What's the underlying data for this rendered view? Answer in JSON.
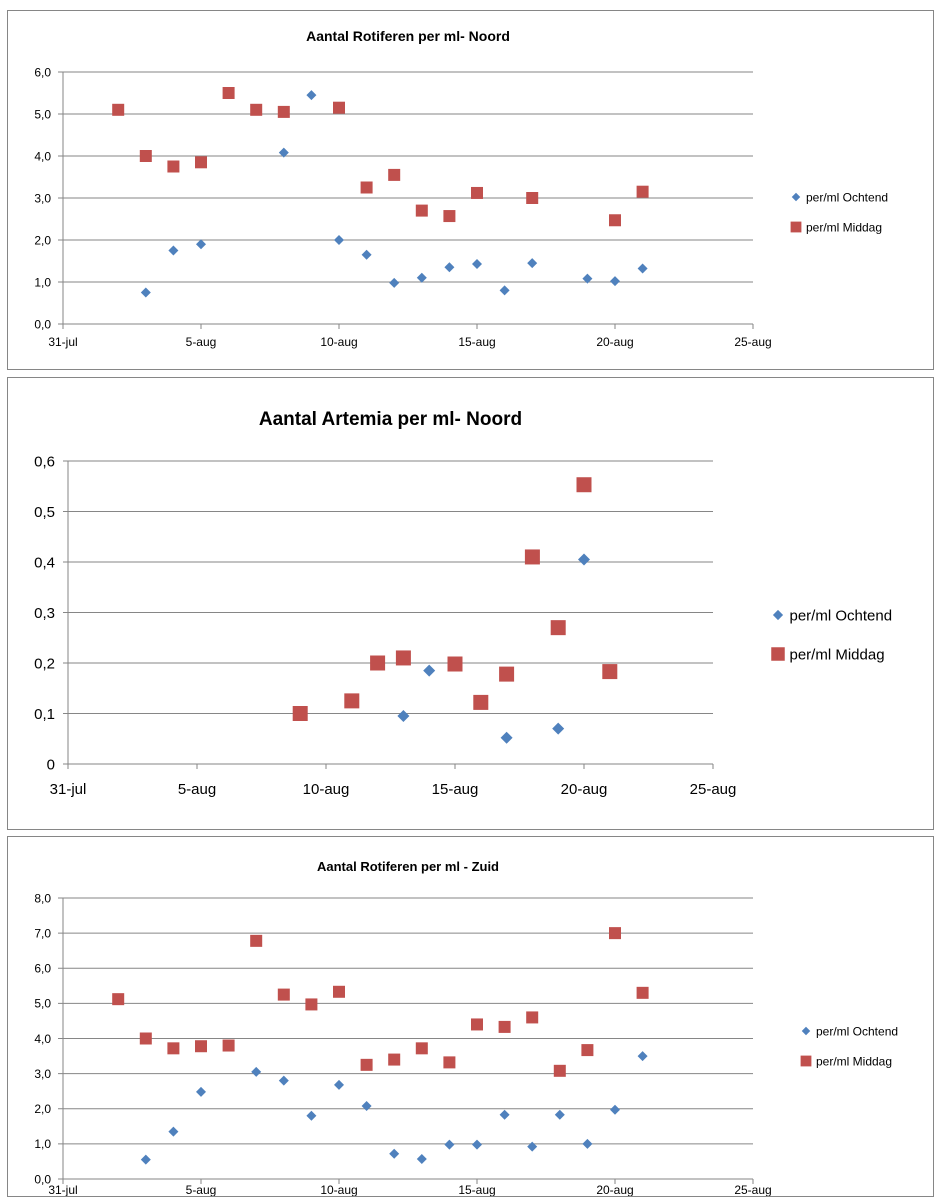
{
  "chart_data": [
    {
      "type": "scatter",
      "title": "Aantal Rotiferen per ml- Noord",
      "xlabel": "",
      "ylabel": "",
      "x_ticks": [
        "31-jul",
        "5-aug",
        "10-aug",
        "15-aug",
        "20-aug",
        "25-aug"
      ],
      "y_ticks": [
        "0,0",
        "1,0",
        "2,0",
        "3,0",
        "4,0",
        "5,0",
        "6,0"
      ],
      "ylim": [
        0,
        6
      ],
      "grid": true,
      "legend": "right",
      "series": [
        {
          "name": "per/ml Ochtend",
          "marker": "diamond",
          "color": "#4F81BD",
          "points": [
            [
              "3-aug",
              0.75
            ],
            [
              "4-aug",
              1.75
            ],
            [
              "5-aug",
              1.9
            ],
            [
              "8-aug",
              4.08
            ],
            [
              "9-aug",
              5.45
            ],
            [
              "10-aug",
              2.0
            ],
            [
              "11-aug",
              1.65
            ],
            [
              "12-aug",
              0.98
            ],
            [
              "13-aug",
              1.1
            ],
            [
              "14-aug",
              1.35
            ],
            [
              "15-aug",
              1.43
            ],
            [
              "16-aug",
              0.8
            ],
            [
              "17-aug",
              1.45
            ],
            [
              "19-aug",
              1.08
            ],
            [
              "20-aug",
              1.02
            ],
            [
              "21-aug",
              1.32
            ]
          ]
        },
        {
          "name": "per/ml Middag",
          "marker": "square",
          "color": "#C0504D",
          "points": [
            [
              "2-aug",
              5.1
            ],
            [
              "3-aug",
              4.0
            ],
            [
              "4-aug",
              3.75
            ],
            [
              "5-aug",
              3.85
            ],
            [
              "6-aug",
              5.5
            ],
            [
              "7-aug",
              5.1
            ],
            [
              "8-aug",
              5.05
            ],
            [
              "10-aug",
              5.15
            ],
            [
              "11-aug",
              3.25
            ],
            [
              "12-aug",
              3.55
            ],
            [
              "13-aug",
              2.7
            ],
            [
              "14-aug",
              2.57
            ],
            [
              "15-aug",
              3.12
            ],
            [
              "17-aug",
              3.0
            ],
            [
              "20-aug",
              2.47
            ],
            [
              "21-aug",
              3.15
            ]
          ]
        }
      ]
    },
    {
      "type": "scatter",
      "title": "Aantal Artemia per ml- Noord",
      "xlabel": "",
      "ylabel": "",
      "x_ticks": [
        "31-jul",
        "5-aug",
        "10-aug",
        "15-aug",
        "20-aug",
        "25-aug"
      ],
      "y_ticks": [
        "0",
        "0,1",
        "0,2",
        "0,3",
        "0,4",
        "0,5",
        "0,6"
      ],
      "ylim": [
        0,
        0.6
      ],
      "grid": true,
      "legend": "right",
      "series": [
        {
          "name": "per/ml Ochtend",
          "marker": "diamond",
          "color": "#4F81BD",
          "points": [
            [
              "13-aug",
              0.095
            ],
            [
              "14-aug",
              0.185
            ],
            [
              "17-aug",
              0.052
            ],
            [
              "19-aug",
              0.07
            ],
            [
              "20-aug",
              0.405
            ]
          ]
        },
        {
          "name": "per/ml Middag",
          "marker": "square",
          "color": "#C0504D",
          "points": [
            [
              "9-aug",
              0.1
            ],
            [
              "11-aug",
              0.125
            ],
            [
              "12-aug",
              0.2
            ],
            [
              "13-aug",
              0.21
            ],
            [
              "15-aug",
              0.198
            ],
            [
              "16-aug",
              0.122
            ],
            [
              "17-aug",
              0.178
            ],
            [
              "18-aug",
              0.41
            ],
            [
              "19-aug",
              0.27
            ],
            [
              "20-aug",
              0.553
            ],
            [
              "21-aug",
              0.183
            ]
          ]
        }
      ]
    },
    {
      "type": "scatter",
      "title": "Aantal Rotiferen per ml - Zuid",
      "xlabel": "",
      "ylabel": "",
      "x_ticks": [
        "31-jul",
        "5-aug",
        "10-aug",
        "15-aug",
        "20-aug",
        "25-aug"
      ],
      "y_ticks": [
        "0,0",
        "1,0",
        "2,0",
        "3,0",
        "4,0",
        "5,0",
        "6,0",
        "7,0",
        "8,0"
      ],
      "ylim": [
        0,
        8
      ],
      "grid": true,
      "legend": "right",
      "series": [
        {
          "name": "per/ml Ochtend",
          "marker": "diamond",
          "color": "#4F81BD",
          "points": [
            [
              "3-aug",
              0.55
            ],
            [
              "4-aug",
              1.35
            ],
            [
              "5-aug",
              2.48
            ],
            [
              "7-aug",
              3.05
            ],
            [
              "8-aug",
              2.8
            ],
            [
              "9-aug",
              1.8
            ],
            [
              "10-aug",
              2.68
            ],
            [
              "11-aug",
              2.08
            ],
            [
              "12-aug",
              0.72
            ],
            [
              "13-aug",
              0.57
            ],
            [
              "14-aug",
              0.98
            ],
            [
              "15-aug",
              0.98
            ],
            [
              "16-aug",
              1.83
            ],
            [
              "17-aug",
              0.92
            ],
            [
              "18-aug",
              1.83
            ],
            [
              "19-aug",
              1.0
            ],
            [
              "20-aug",
              1.97
            ],
            [
              "21-aug",
              3.5
            ]
          ]
        },
        {
          "name": "per/ml Middag",
          "marker": "square",
          "color": "#C0504D",
          "points": [
            [
              "2-aug",
              5.12
            ],
            [
              "3-aug",
              4.0
            ],
            [
              "4-aug",
              3.72
            ],
            [
              "5-aug",
              3.78
            ],
            [
              "6-aug",
              3.8
            ],
            [
              "7-aug",
              6.78
            ],
            [
              "8-aug",
              5.25
            ],
            [
              "9-aug",
              4.97
            ],
            [
              "10-aug",
              5.33
            ],
            [
              "11-aug",
              3.25
            ],
            [
              "12-aug",
              3.4
            ],
            [
              "13-aug",
              3.72
            ],
            [
              "14-aug",
              3.32
            ],
            [
              "15-aug",
              4.4
            ],
            [
              "16-aug",
              4.33
            ],
            [
              "17-aug",
              4.6
            ],
            [
              "18-aug",
              3.08
            ],
            [
              "19-aug",
              3.67
            ],
            [
              "20-aug",
              7.0
            ],
            [
              "21-aug",
              5.3
            ]
          ]
        }
      ]
    }
  ]
}
